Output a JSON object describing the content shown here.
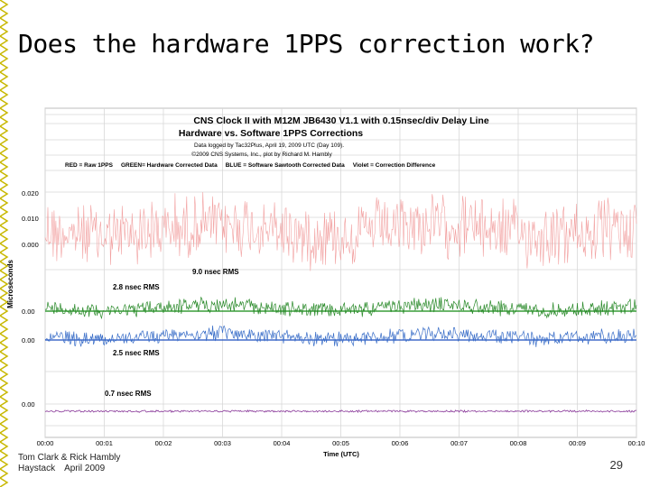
{
  "slide": {
    "title": "Does the hardware 1PPS correction work?",
    "footer_author": "Tom Clark & Rick Hambly",
    "footer_place": "Haystack",
    "footer_date": "April 2009",
    "page_number": "29"
  },
  "colors": {
    "red_raw": "#f2a2a2",
    "green_hw": "#2a8a2a",
    "blue_sw": "#3a6ec8",
    "violet_diff": "#8a3a9a",
    "green_ref": "#138a13",
    "blue_ref": "#1f4fbf"
  },
  "chart_data": {
    "type": "line",
    "title_lines": [
      "CNS Clock II with M12M JB6430 V1.1 with 0.15nsec/div Delay Line",
      "Hardware vs. Software 1PPS Corrections"
    ],
    "subtitle_lines": [
      "Data logged by Tac32Plus, April 19, 2009 UTC (Day 109).",
      "©2009 CNS Systems, Inc., plot by Richard M. Hambly"
    ],
    "legend_line": "RED = Raw 1PPS     GREEN= Hardware Corrected Data     BLUE = Software Sawtooth Corrected Data     Violet = Correction Difference",
    "xlabel": "Time (UTC)",
    "ylabel": "Microseconds",
    "x_ticks": [
      "00:00",
      "00:01",
      "00:02",
      "00:03",
      "00:04",
      "00:05",
      "00:06",
      "00:07",
      "00:08",
      "00:09",
      "00:10"
    ],
    "y_tick_labels": [
      "0.020",
      "0.010",
      "0.000",
      "0.00",
      "0.00",
      "0.00"
    ],
    "annotations": [
      "9.0 nsec RMS",
      "2.8 nsec RMS",
      "2.5 nsec RMS",
      "0.7 nsec RMS"
    ],
    "grid": true,
    "series": [
      {
        "name": "RED = Raw 1PPS",
        "rms_ns": 9.0
      },
      {
        "name": "GREEN= Hardware Corrected Data",
        "rms_ns": 2.8
      },
      {
        "name": "BLUE = Software Sawtooth Corrected Data",
        "rms_ns": 2.5
      },
      {
        "name": "Violet = Correction Difference",
        "rms_ns": 0.7
      }
    ]
  }
}
